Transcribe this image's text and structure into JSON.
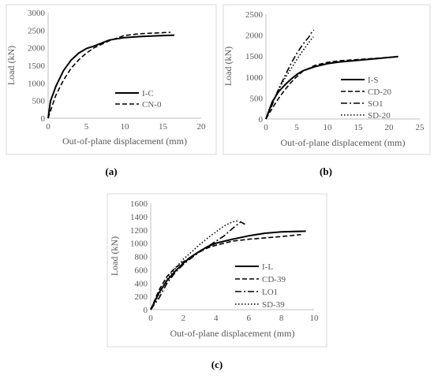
{
  "chart_data": [
    {
      "type": "line",
      "caption": "(a)",
      "xlabel": "Out-of-plane displacement (mm)",
      "ylabel": "Load (kN)",
      "xlim": [
        0,
        20
      ],
      "ylim": [
        0,
        3000
      ],
      "xticks": [
        0,
        5,
        10,
        15,
        20
      ],
      "yticks": [
        0,
        500,
        1000,
        1500,
        2000,
        2500,
        3000
      ],
      "legend_position": "bottom-right",
      "series": [
        {
          "name": "I-C",
          "dash": "solid",
          "x": [
            0,
            0.3,
            1,
            2,
            3,
            4,
            5,
            6,
            8,
            10,
            12,
            14,
            16.5
          ],
          "y": [
            0,
            480,
            900,
            1350,
            1650,
            1850,
            1980,
            2050,
            2220,
            2290,
            2320,
            2340,
            2360
          ]
        },
        {
          "name": "CN-0",
          "dash": "dashed",
          "x": [
            0,
            0.5,
            1,
            2,
            3,
            4,
            5,
            6,
            8,
            10,
            12,
            14,
            16
          ],
          "y": [
            0,
            330,
            650,
            1080,
            1420,
            1660,
            1850,
            2000,
            2200,
            2350,
            2400,
            2420,
            2440
          ]
        }
      ]
    },
    {
      "type": "line",
      "caption": "(b)",
      "xlabel": "Out-of-plane displacement (mm)",
      "ylabel": "Load (kN)",
      "xlim": [
        0,
        25
      ],
      "ylim": [
        0,
        2500
      ],
      "xticks": [
        0,
        5,
        10,
        15,
        20,
        25
      ],
      "yticks": [
        0,
        500,
        1000,
        1500,
        2000,
        2500
      ],
      "legend_position": "right",
      "series": [
        {
          "name": "I-S",
          "dash": "solid",
          "x": [
            0,
            1,
            2,
            3,
            4,
            5,
            6,
            8,
            10,
            12,
            15,
            18,
            21.5
          ],
          "y": [
            0,
            400,
            640,
            800,
            940,
            1060,
            1150,
            1250,
            1320,
            1360,
            1400,
            1440,
            1490
          ]
        },
        {
          "name": "CD-20",
          "dash": "dashed",
          "x": [
            0,
            1,
            2,
            3,
            4,
            5,
            6,
            8,
            10,
            12,
            15,
            18,
            21
          ],
          "y": [
            0,
            250,
            480,
            680,
            860,
            1010,
            1140,
            1280,
            1350,
            1390,
            1420,
            1450,
            1480
          ]
        },
        {
          "name": "SO1",
          "dash": "dashdot",
          "x": [
            0,
            1,
            2,
            3,
            4,
            5,
            6,
            7,
            7.5,
            7.8
          ],
          "y": [
            0,
            330,
            700,
            1000,
            1300,
            1560,
            1780,
            1960,
            2080,
            2120
          ]
        },
        {
          "name": "SD-20",
          "dash": "dotted",
          "x": [
            0,
            1,
            2,
            3,
            4,
            5,
            6,
            7,
            7.7
          ],
          "y": [
            0,
            380,
            680,
            950,
            1180,
            1410,
            1630,
            1830,
            1960
          ]
        }
      ]
    },
    {
      "type": "line",
      "caption": "(c)",
      "xlabel": "Out-of-plane displacement (mm)",
      "ylabel": "Load (kN)",
      "xlim": [
        0,
        10
      ],
      "ylim": [
        0,
        1600
      ],
      "xticks": [
        0,
        2,
        4,
        6,
        8,
        10
      ],
      "yticks": [
        0,
        200,
        400,
        600,
        800,
        1000,
        1200,
        1400,
        1600
      ],
      "legend_position": "bottom-right",
      "series": [
        {
          "name": "I-L",
          "dash": "solid",
          "x": [
            0,
            0.5,
            1,
            1.5,
            2,
            2.5,
            3,
            3.5,
            4,
            5,
            6,
            7,
            8,
            9.5
          ],
          "y": [
            0,
            250,
            440,
            580,
            700,
            800,
            880,
            950,
            1000,
            1060,
            1110,
            1150,
            1170,
            1180
          ]
        },
        {
          "name": "CD-39",
          "dash": "dashed",
          "x": [
            0,
            0.5,
            1,
            1.5,
            2,
            2.5,
            3,
            3.5,
            4,
            5,
            6,
            7,
            8,
            9.2
          ],
          "y": [
            0,
            290,
            500,
            630,
            720,
            800,
            870,
            930,
            970,
            1030,
            1060,
            1080,
            1100,
            1130
          ]
        },
        {
          "name": "LO1",
          "dash": "dashdot",
          "x": [
            0,
            0.5,
            1,
            1.5,
            2,
            2.5,
            3,
            3.5,
            4,
            4.5,
            5,
            5.5,
            5.8
          ],
          "y": [
            0,
            170,
            400,
            560,
            680,
            780,
            870,
            950,
            1030,
            1110,
            1220,
            1320,
            1280
          ]
        },
        {
          "name": "SD-39",
          "dash": "dotted",
          "x": [
            0,
            0.5,
            1,
            1.5,
            2,
            2.5,
            3,
            3.5,
            4,
            4.5,
            5,
            5.4
          ],
          "y": [
            0,
            220,
            460,
            620,
            760,
            870,
            980,
            1080,
            1170,
            1260,
            1320,
            1340
          ]
        }
      ]
    }
  ]
}
